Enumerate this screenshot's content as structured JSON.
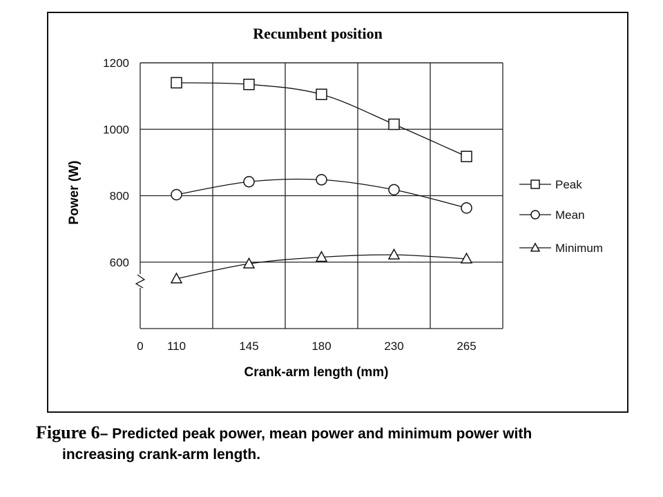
{
  "chart_data": {
    "type": "line",
    "title": "Recumbent position",
    "xlabel": "Crank-arm length (mm)",
    "ylabel": "Power (W)",
    "categories": [
      "110",
      "145",
      "180",
      "230",
      "265"
    ],
    "x_zero_label": "0",
    "yticks": [
      600,
      800,
      1000,
      1200
    ],
    "ylim": [
      400,
      1200
    ],
    "axis_break": true,
    "grid": true,
    "legend_position": "right",
    "series": [
      {
        "name": "Peak",
        "marker": "square",
        "values": [
          1140,
          1135,
          1105,
          1015,
          918
        ]
      },
      {
        "name": "Mean",
        "marker": "circle",
        "values": [
          803,
          842,
          848,
          818,
          763
        ]
      },
      {
        "name": "Minimum",
        "marker": "triangle",
        "values": [
          550,
          595,
          615,
          622,
          610
        ]
      }
    ]
  },
  "caption": {
    "label": "Figure 6",
    "text_line1": "Predicted peak power, mean power and minimum power with",
    "text_line2": "increasing crank-arm length."
  }
}
